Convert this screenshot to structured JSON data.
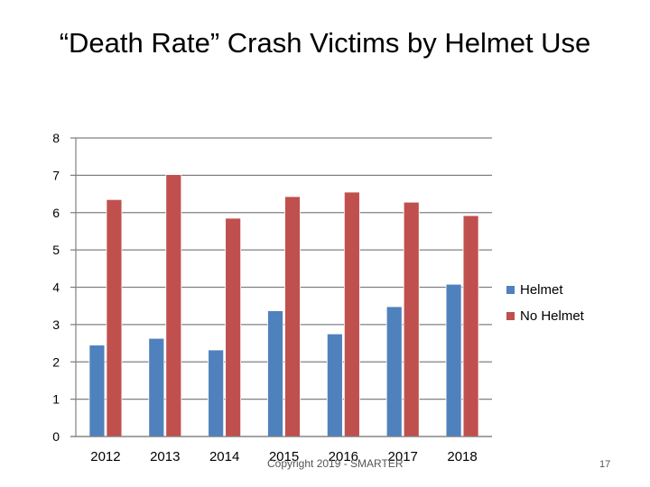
{
  "slide": {
    "title": "“Death Rate” Crash Victims by Helmet Use",
    "copyright": "Copyright 2019 - SMARTER",
    "page_number": "17"
  },
  "colors": {
    "helmet": "#4F81BD",
    "no_helmet": "#C0504D",
    "grid": "#808080"
  },
  "chart_data": {
    "type": "bar",
    "title": "“Death Rate” Crash Victims by Helmet Use",
    "categories": [
      "2012",
      "2013",
      "2014",
      "2015",
      "2016",
      "2017",
      "2018"
    ],
    "series": [
      {
        "name": "Helmet",
        "values": [
          2.45,
          2.63,
          2.32,
          3.37,
          2.75,
          3.48,
          4.08
        ]
      },
      {
        "name": "No Helmet",
        "values": [
          6.35,
          7.02,
          5.85,
          6.43,
          6.55,
          6.28,
          5.92
        ]
      }
    ],
    "ylim": [
      0,
      8
    ],
    "yticks": [
      "0",
      "1",
      "2",
      "3",
      "4",
      "5",
      "6",
      "7",
      "8"
    ],
    "xlabel": "",
    "ylabel": "",
    "grid": true,
    "legend_position": "right"
  }
}
